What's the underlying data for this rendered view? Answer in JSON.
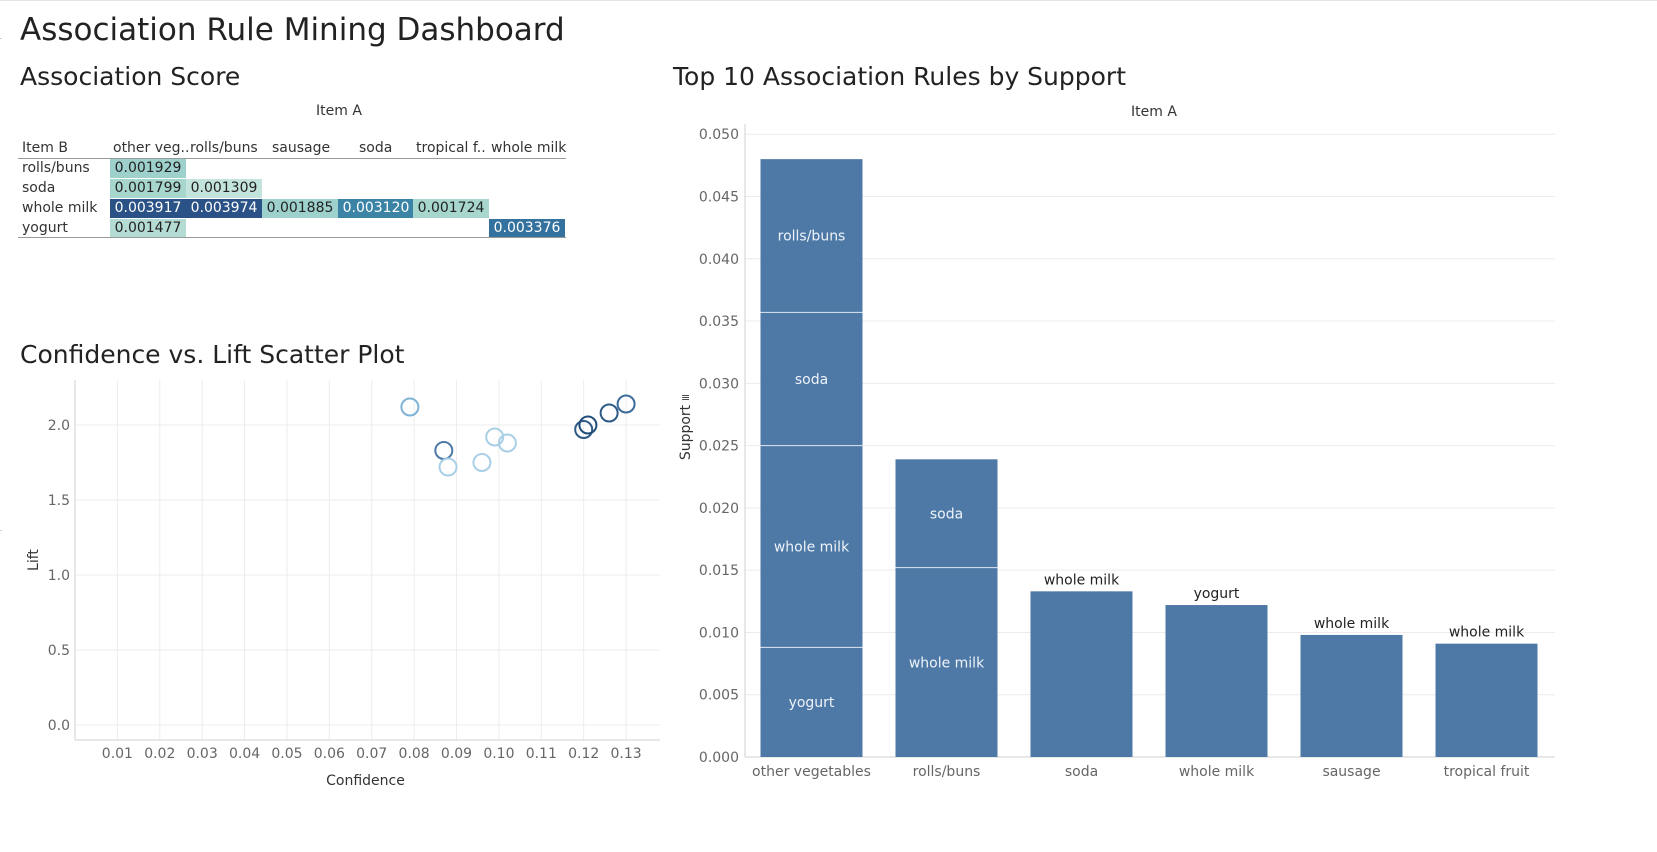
{
  "dashboard": {
    "title": "Association Rule Mining Dashboard"
  },
  "heatmap": {
    "title": "Association Score",
    "column_header_title": "Item A",
    "row_header_title": "Item B",
    "columns": [
      "other veg..",
      "rolls/buns",
      "sausage",
      "soda",
      "tropical f..",
      "whole milk"
    ],
    "rows": [
      "rolls/buns",
      "soda",
      "whole milk",
      "yogurt"
    ],
    "cells": [
      {
        "row": 0,
        "col": 0,
        "value": "0.001929",
        "color": "#9fd1cc",
        "text_color": "#222222"
      },
      {
        "row": 1,
        "col": 0,
        "value": "0.001799",
        "color": "#a7d6cf",
        "text_color": "#222222"
      },
      {
        "row": 1,
        "col": 1,
        "value": "0.001309",
        "color": "#c3e4dc",
        "text_color": "#222222"
      },
      {
        "row": 2,
        "col": 0,
        "value": "0.003917",
        "color": "#2a5286",
        "text_color": "#ffffff"
      },
      {
        "row": 2,
        "col": 1,
        "value": "0.003974",
        "color": "#2a5286",
        "text_color": "#ffffff"
      },
      {
        "row": 2,
        "col": 2,
        "value": "0.001885",
        "color": "#9fd1cc",
        "text_color": "#222222"
      },
      {
        "row": 2,
        "col": 3,
        "value": "0.003120",
        "color": "#3b84a6",
        "text_color": "#ffffff"
      },
      {
        "row": 2,
        "col": 4,
        "value": "0.001724",
        "color": "#a7d6cf",
        "text_color": "#222222"
      },
      {
        "row": 3,
        "col": 0,
        "value": "0.001477",
        "color": "#b5dcd4",
        "text_color": "#222222"
      },
      {
        "row": 3,
        "col": 5,
        "value": "0.003376",
        "color": "#33719e",
        "text_color": "#ffffff"
      }
    ]
  },
  "chart_data": [
    {
      "type": "scatter",
      "title": "Confidence vs. Lift Scatter Plot",
      "xlabel": "Confidence",
      "ylabel": "Lift",
      "xlim": [
        0.0,
        0.138
      ],
      "ylim": [
        -0.1,
        2.3
      ],
      "x_ticks": [
        "0.01",
        "0.02",
        "0.03",
        "0.04",
        "0.05",
        "0.06",
        "0.07",
        "0.08",
        "0.09",
        "0.10",
        "0.11",
        "0.12",
        "0.13"
      ],
      "y_ticks": [
        "0.0",
        "0.5",
        "1.0",
        "1.5",
        "2.0"
      ],
      "grid": true,
      "points": [
        {
          "x": 0.079,
          "y": 2.12,
          "color": "#7fb3d5"
        },
        {
          "x": 0.087,
          "y": 1.83,
          "color": "#4e79a7"
        },
        {
          "x": 0.088,
          "y": 1.72,
          "color": "#a9cfe6"
        },
        {
          "x": 0.096,
          "y": 1.75,
          "color": "#a9cfe6"
        },
        {
          "x": 0.099,
          "y": 1.92,
          "color": "#a9cfe6"
        },
        {
          "x": 0.102,
          "y": 1.88,
          "color": "#a9cfe6"
        },
        {
          "x": 0.12,
          "y": 1.97,
          "color": "#2e5a87"
        },
        {
          "x": 0.121,
          "y": 2.0,
          "color": "#1f4e79"
        },
        {
          "x": 0.126,
          "y": 2.08,
          "color": "#2e5a87"
        },
        {
          "x": 0.13,
          "y": 2.14,
          "color": "#3b6c9a"
        }
      ]
    },
    {
      "type": "bar",
      "title": "Top 10 Association Rules by Support",
      "xlabel": "Item A",
      "ylabel": "Support",
      "ylim": [
        0,
        0.0505
      ],
      "y_ticks": [
        "0.000",
        "0.005",
        "0.010",
        "0.015",
        "0.020",
        "0.025",
        "0.030",
        "0.035",
        "0.040",
        "0.045",
        "0.050"
      ],
      "categories": [
        "other vegetables",
        "rolls/buns",
        "soda",
        "whole milk",
        "sausage",
        "tropical fruit"
      ],
      "stacks": [
        [
          {
            "label": "yogurt",
            "value": 0.0088
          },
          {
            "label": "whole milk",
            "value": 0.0162
          },
          {
            "label": "soda",
            "value": 0.0107
          },
          {
            "label": "rolls/buns",
            "value": 0.0123
          }
        ],
        [
          {
            "label": "whole milk",
            "value": 0.0152
          },
          {
            "label": "soda",
            "value": 0.0087
          }
        ],
        [
          {
            "label": "whole milk",
            "value": 0.0133
          }
        ],
        [
          {
            "label": "yogurt",
            "value": 0.0122
          }
        ],
        [
          {
            "label": "whole milk",
            "value": 0.0098
          }
        ],
        [
          {
            "label": "whole milk",
            "value": 0.0091
          }
        ]
      ],
      "bar_color": "#4e79a7",
      "grid": true
    }
  ]
}
